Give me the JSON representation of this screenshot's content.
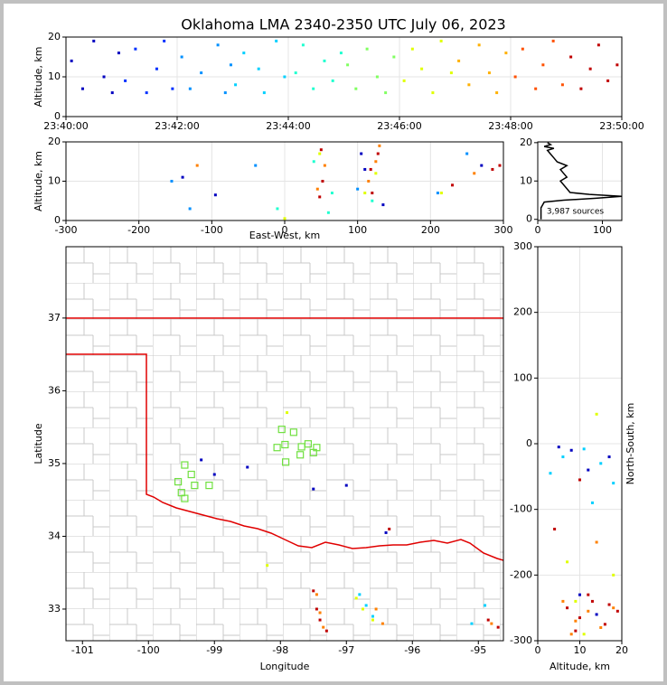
{
  "chart_data": [
    {
      "type": "scatter",
      "title": "Oklahoma LMA 2340-2350 UTC July 06, 2023",
      "ylabel": "Altitude, km",
      "xlim": [
        "23:40:00",
        "23:50:00"
      ],
      "xticks": [
        "23:40:00",
        "23:42:00",
        "23:44:00",
        "23:46:00",
        "23:48:00",
        "23:50:00"
      ],
      "ylim": [
        0,
        20
      ],
      "yticks": [
        0,
        10,
        20
      ],
      "grid": true,
      "series": [
        {
          "color": "#0000c0",
          "x": [
            "23:40:06",
            "23:40:18",
            "23:40:30",
            "23:40:41",
            "23:40:50",
            "23:40:57"
          ],
          "values": [
            14,
            7,
            19,
            10,
            6,
            16
          ]
        },
        {
          "color": "#0030ff",
          "x": [
            "23:41:04",
            "23:41:15",
            "23:41:27",
            "23:41:38",
            "23:41:46",
            "23:41:55"
          ],
          "values": [
            9,
            17,
            6,
            12,
            19,
            7
          ]
        },
        {
          "color": "#0090ff",
          "x": [
            "23:42:05",
            "23:42:14",
            "23:42:26",
            "23:42:44",
            "23:42:52",
            "23:42:58"
          ],
          "values": [
            15,
            7,
            11,
            18,
            6,
            13
          ]
        },
        {
          "color": "#00d0ff",
          "x": [
            "23:43:03",
            "23:43:12",
            "23:43:28",
            "23:43:34",
            "23:43:47",
            "23:43:56"
          ],
          "values": [
            8,
            16,
            12,
            6,
            19,
            10
          ]
        },
        {
          "color": "#20ffd0",
          "x": [
            "23:44:08",
            "23:44:16",
            "23:44:27",
            "23:44:39",
            "23:44:48",
            "23:44:57"
          ],
          "values": [
            11,
            18,
            7,
            14,
            9,
            16
          ]
        },
        {
          "color": "#80ff60",
          "x": [
            "23:45:04",
            "23:45:13",
            "23:45:25",
            "23:45:36",
            "23:45:45",
            "23:45:54"
          ],
          "values": [
            13,
            7,
            17,
            10,
            6,
            15
          ]
        },
        {
          "color": "#e0ff00",
          "x": [
            "23:46:05",
            "23:46:14",
            "23:46:24",
            "23:46:36",
            "23:46:45",
            "23:46:56"
          ],
          "values": [
            9,
            17,
            12,
            6,
            19,
            11
          ]
        },
        {
          "color": "#ffb000",
          "x": [
            "23:47:04",
            "23:47:15",
            "23:47:26",
            "23:47:37",
            "23:47:45",
            "23:47:55"
          ],
          "values": [
            14,
            8,
            18,
            11,
            6,
            16
          ]
        },
        {
          "color": "#ff5000",
          "x": [
            "23:48:05",
            "23:48:13",
            "23:48:27",
            "23:48:35",
            "23:48:46",
            "23:48:56"
          ],
          "values": [
            10,
            17,
            7,
            13,
            19,
            8
          ]
        },
        {
          "color": "#c00000",
          "x": [
            "23:49:05",
            "23:49:16",
            "23:49:26",
            "23:49:35",
            "23:49:45",
            "23:49:55"
          ],
          "values": [
            15,
            7,
            12,
            18,
            9,
            13
          ]
        }
      ]
    },
    {
      "type": "scatter",
      "xlabel": "East-West, km",
      "ylabel": "Altitude, km",
      "xlim": [
        -300,
        300
      ],
      "xticks": [
        -300,
        -200,
        -100,
        0,
        100,
        200,
        300
      ],
      "ylim": [
        0,
        20
      ],
      "yticks": [
        0,
        10,
        20
      ],
      "grid": true,
      "series": [
        {
          "color": "#0000c0",
          "x": [
            -95,
            -140,
            110,
            105,
            135,
            270
          ],
          "values": [
            6.5,
            11,
            13,
            17,
            4,
            14
          ]
        },
        {
          "color": "#0090ff",
          "x": [
            -130,
            -155,
            -40,
            100,
            210,
            250
          ],
          "values": [
            3,
            10,
            14,
            8,
            7,
            17
          ]
        },
        {
          "color": "#20ffd0",
          "x": [
            60,
            65,
            40,
            120,
            -10
          ],
          "values": [
            2,
            7,
            15,
            5,
            3
          ]
        },
        {
          "color": "#e0ff00",
          "x": [
            110,
            125,
            48,
            215,
            0
          ],
          "values": [
            7,
            12,
            17,
            7,
            0.5
          ]
        },
        {
          "color": "#ff8000",
          "x": [
            45,
            55,
            115,
            125,
            130,
            260,
            -120
          ],
          "values": [
            8,
            14,
            10,
            15,
            19,
            12,
            14
          ]
        },
        {
          "color": "#c00000",
          "x": [
            48,
            52,
            50,
            120,
            118,
            128,
            285,
            295,
            230
          ],
          "values": [
            6,
            10,
            18,
            7,
            13,
            17,
            13,
            14,
            9
          ]
        }
      ]
    },
    {
      "type": "line",
      "annotation": "3,987 sources",
      "xlim": [
        0,
        130
      ],
      "xticks": [
        0,
        100
      ],
      "ylim": [
        -0.3,
        20.2
      ],
      "yticks": [
        0,
        10,
        20
      ],
      "grid": true,
      "series": [
        {
          "color": "#000000",
          "x": [
            5,
            5,
            10,
            40,
            90,
            130,
            80,
            50,
            45,
            40,
            35,
            45,
            40,
            35,
            45,
            30,
            25,
            20,
            15,
            25,
            10,
            20,
            15
          ],
          "values": [
            0,
            3,
            4.5,
            5,
            5.5,
            6,
            6.5,
            7,
            8,
            9,
            10,
            11,
            12,
            13,
            14,
            15,
            16,
            17,
            18,
            18.5,
            19,
            19.5,
            20
          ]
        }
      ]
    },
    {
      "type": "scatter",
      "xlabel": "Longitude",
      "ylabel": "Latitude",
      "xlim": [
        -101.25,
        -94.62
      ],
      "xticks": [
        -101,
        -100,
        -99,
        -98,
        -97,
        -96,
        -95
      ],
      "ylim": [
        32.565,
        37.98
      ],
      "yticks": [
        33,
        34,
        35,
        36,
        37
      ],
      "grid": false,
      "series": [
        {
          "color": "#0000c0",
          "x": [
            -97.5,
            -98.5,
            -97,
            -96.4,
            -99.2,
            -99.0
          ],
          "values": [
            34.65,
            34.95,
            34.7,
            34.05,
            35.05,
            34.85
          ]
        },
        {
          "color": "#00d0ff",
          "x": [
            -96.8,
            -96.7,
            -96.6,
            -95.1,
            -94.9
          ],
          "values": [
            33.2,
            33.05,
            32.9,
            32.8,
            33.05
          ]
        },
        {
          "color": "#e0ff00",
          "x": [
            -97.9,
            -96.85,
            -96.75,
            -96.6,
            -98.2
          ],
          "values": [
            35.7,
            33.15,
            33.0,
            32.85,
            33.6
          ]
        },
        {
          "color": "#ff8000",
          "x": [
            -97.45,
            -97.4,
            -97.35,
            -96.55,
            -96.45,
            -94.8
          ],
          "values": [
            33.2,
            32.95,
            32.75,
            33.0,
            32.8,
            32.8
          ]
        },
        {
          "color": "#c00000",
          "x": [
            -97.5,
            -97.45,
            -97.4,
            -97.3,
            -94.7,
            -94.85,
            -96.35
          ],
          "values": [
            33.25,
            33.0,
            32.85,
            32.7,
            32.75,
            32.85,
            34.1
          ]
        },
        {
          "color": "#70e040",
          "marker": "square",
          "x": [
            -97.98,
            -97.8,
            -98.05,
            -97.93,
            -97.68,
            -97.58,
            -97.45,
            -97.5,
            -97.7,
            -97.92,
            -99.45,
            -99.35,
            -99.55,
            -99.3,
            -99.08,
            -99.5,
            -99.45
          ],
          "values": [
            35.47,
            35.43,
            35.22,
            35.26,
            35.23,
            35.27,
            35.22,
            35.15,
            35.12,
            35.02,
            34.98,
            34.85,
            34.75,
            34.7,
            34.7,
            34.6,
            34.52
          ]
        }
      ]
    },
    {
      "type": "scatter",
      "xlabel": "Altitude, km",
      "ylabel": "North-South, km",
      "ylabel_side": "right",
      "xlim": [
        0,
        20
      ],
      "xticks": [
        0,
        10,
        20
      ],
      "ylim": [
        -300,
        300
      ],
      "yticks": [
        -300,
        -200,
        -100,
        0,
        100,
        200,
        300
      ],
      "grid": true,
      "series": [
        {
          "color": "#0000c0",
          "x": [
            8,
            12,
            17,
            5,
            14,
            10
          ],
          "values": [
            -10,
            -40,
            -20,
            -5,
            -260,
            -230
          ]
        },
        {
          "color": "#00d0ff",
          "x": [
            3,
            6,
            11,
            15,
            18,
            13
          ],
          "values": [
            -45,
            -20,
            -8,
            -30,
            -60,
            -90
          ]
        },
        {
          "color": "#e0ff00",
          "x": [
            14,
            7,
            18,
            9,
            11
          ],
          "values": [
            45,
            -180,
            -200,
            -240,
            -290
          ]
        },
        {
          "color": "#ff8000",
          "x": [
            6,
            9,
            12,
            15,
            18,
            8,
            14
          ],
          "values": [
            -240,
            -270,
            -255,
            -280,
            -250,
            -290,
            -150
          ]
        },
        {
          "color": "#c00000",
          "x": [
            7,
            10,
            13,
            16,
            19,
            9,
            12,
            17,
            10,
            4
          ],
          "values": [
            -250,
            -265,
            -240,
            -275,
            -255,
            -285,
            -230,
            -245,
            -55,
            -130
          ]
        }
      ]
    }
  ]
}
